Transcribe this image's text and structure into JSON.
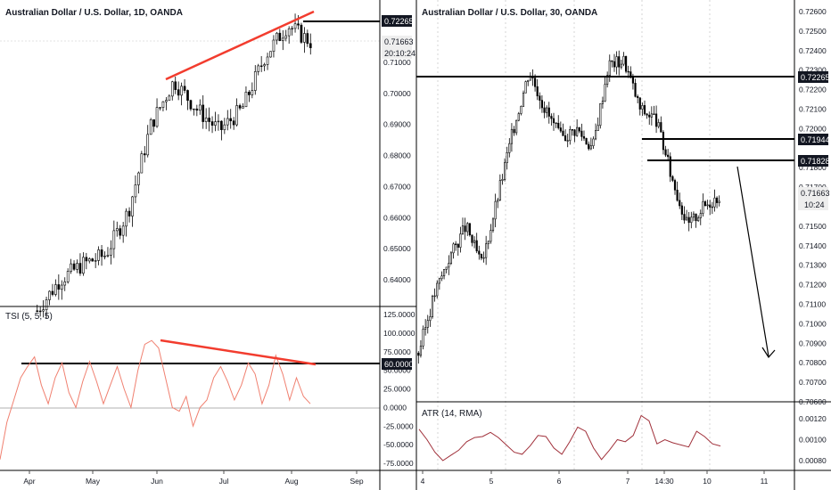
{
  "left_chart": {
    "title": "Australian Dollar / U.S. Dollar, 1D, OANDA",
    "price_axis": {
      "ticks": [
        "0.71000",
        "0.70000",
        "0.69000",
        "0.68000",
        "0.67000",
        "0.66000",
        "0.65000",
        "0.64000"
      ],
      "badges": [
        {
          "label": "0.72265",
          "style": "dark"
        },
        {
          "label": "0.71663",
          "style": "light"
        },
        {
          "label": "20:10:24",
          "style": "light"
        }
      ]
    },
    "indicator": {
      "title": "TSI (5, 5, 5)",
      "ticks": [
        "125.0000",
        "100.0000",
        "75.0000",
        "50.0000",
        "25.0000",
        "0.0000",
        "-25.0000",
        "-50.0000",
        "-75.0000"
      ],
      "badge": "60.0000"
    },
    "time_axis": [
      "Apr",
      "May",
      "Jun",
      "Jul",
      "Aug",
      "Sep"
    ]
  },
  "right_chart": {
    "title": "Australian Dollar / U.S. Dollar, 30, OANDA",
    "price_axis": {
      "ticks": [
        "0.72600",
        "0.72500",
        "0.72400",
        "0.72300",
        "0.72200",
        "0.72100",
        "0.72000",
        "0.71800",
        "0.71700",
        "0.71500",
        "0.71400",
        "0.71300",
        "0.71200",
        "0.71100",
        "0.71000",
        "0.70900",
        "0.70800",
        "0.70700",
        "0.70600"
      ],
      "badges": [
        {
          "label": "0.72265",
          "style": "dark"
        },
        {
          "label": "0.71944",
          "style": "dark"
        },
        {
          "label": "0.71828",
          "style": "dark"
        },
        {
          "label": "0.71663",
          "style": "light"
        },
        {
          "label": "10:24",
          "style": "light"
        }
      ]
    },
    "indicator": {
      "title": "ATR (14, RMA)",
      "ticks": [
        "0.00120",
        "0.00100",
        "0.00080"
      ]
    },
    "time_axis": [
      "4",
      "5",
      "6",
      "7",
      "14:30",
      "10",
      "11"
    ]
  },
  "chart_data": [
    {
      "type": "candlestick",
      "title": "Australian Dollar / U.S. Dollar, 1D, OANDA",
      "x": [
        "Apr",
        "May",
        "Jun",
        "Jul",
        "Aug",
        "Sep"
      ],
      "ylim": [
        0.635,
        0.7245
      ],
      "close_path": [
        {
          "x": "Mar-end",
          "y": 0.63
        },
        {
          "x": "Apr-mid",
          "y": 0.64
        },
        {
          "x": "Apr-end",
          "y": 0.645
        },
        {
          "x": "May-mid",
          "y": 0.648
        },
        {
          "x": "May-end",
          "y": 0.662
        },
        {
          "x": "Jun-start",
          "y": 0.69
        },
        {
          "x": "Jun-08",
          "y": 0.704
        },
        {
          "x": "Jun-mid",
          "y": 0.695
        },
        {
          "x": "Jun-end",
          "y": 0.688
        },
        {
          "x": "Jul-mid",
          "y": 0.695
        },
        {
          "x": "Jul-end",
          "y": 0.712
        },
        {
          "x": "Aug-05",
          "y": 0.722
        },
        {
          "x": "Aug-07",
          "y": 0.7166
        }
      ],
      "levels": [
        0.72265
      ],
      "last_price": 0.71663,
      "indicator": {
        "name": "TSI (5, 5, 5)",
        "ylim": [
          -82,
          132
        ],
        "levels": [
          60,
          0
        ],
        "values": [
          -70,
          -20,
          10,
          40,
          55,
          68,
          30,
          5,
          40,
          60,
          20,
          0,
          35,
          62,
          35,
          5,
          30,
          55,
          25,
          0,
          50,
          85,
          90,
          80,
          40,
          0,
          -5,
          15,
          -25,
          0,
          10,
          40,
          55,
          35,
          10,
          30,
          60,
          45,
          5,
          30,
          70,
          45,
          10,
          40,
          15,
          5
        ]
      }
    },
    {
      "type": "candlestick",
      "title": "Australian Dollar / U.S. Dollar, 30, OANDA",
      "x": [
        "4",
        "5",
        "6",
        "7",
        "14:30",
        "10",
        "11"
      ],
      "ylim": [
        0.7055,
        0.7265
      ],
      "close_path": [
        {
          "x": "4",
          "y": 0.7085
        },
        {
          "x": "4",
          "y": 0.7115
        },
        {
          "x": "5-",
          "y": 0.7135
        },
        {
          "x": "5",
          "y": 0.715
        },
        {
          "x": "5+",
          "y": 0.713
        },
        {
          "x": "5.5",
          "y": 0.7165
        },
        {
          "x": "6-",
          "y": 0.72
        },
        {
          "x": "6",
          "y": 0.723
        },
        {
          "x": "6+",
          "y": 0.721
        },
        {
          "x": "6.3",
          "y": 0.7195
        },
        {
          "x": "6.6",
          "y": 0.72
        },
        {
          "x": "6.9",
          "y": 0.719
        },
        {
          "x": "7",
          "y": 0.7233
        },
        {
          "x": "7.2",
          "y": 0.7235
        },
        {
          "x": "7.4",
          "y": 0.721
        },
        {
          "x": "7.6",
          "y": 0.7205
        },
        {
          "x": "14:30",
          "y": 0.7175
        },
        {
          "x": "10-",
          "y": 0.715
        },
        {
          "x": "10",
          "y": 0.716
        },
        {
          "x": "10+",
          "y": 0.7166
        }
      ],
      "levels": [
        0.72265,
        0.71944,
        0.71828
      ],
      "last_price": 0.71663,
      "indicator": {
        "name": "ATR (14, RMA)",
        "ylim": [
          0.00075,
          0.00128
        ],
        "values": [
          0.0011,
          0.001,
          0.00088,
          0.0008,
          0.00085,
          0.0009,
          0.00098,
          0.00102,
          0.00103,
          0.00107,
          0.00102,
          0.00095,
          0.00088,
          0.00086,
          0.00094,
          0.00104,
          0.00103,
          0.00092,
          0.00086,
          0.00098,
          0.00112,
          0.00108,
          0.00092,
          0.00081,
          0.0009,
          0.001,
          0.00098,
          0.00104,
          0.00123,
          0.00118,
          0.00096,
          0.001,
          0.00097,
          0.00095,
          0.00093,
          0.00108,
          0.00103,
          0.00096,
          0.00094
        ]
      }
    }
  ]
}
